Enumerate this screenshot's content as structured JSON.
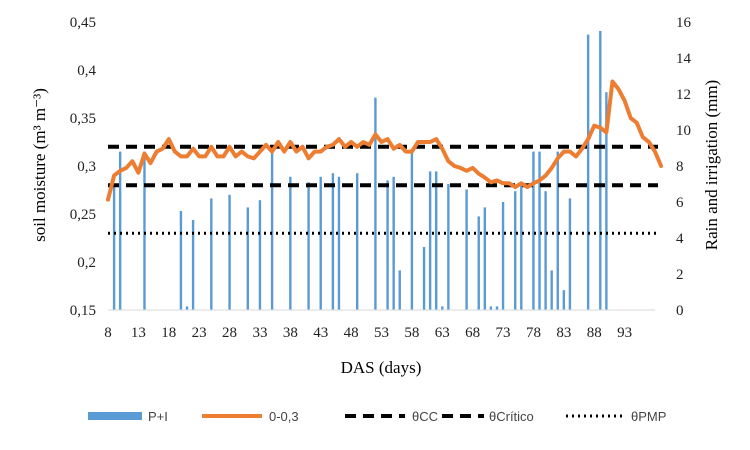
{
  "chart_data": {
    "type": "bar+line",
    "xlabel": "DAS  (days)",
    "ylabel_left": "soil moisture (m³ m⁻³)",
    "ylabel_right": "Rain and irrigation (mm)",
    "xlim": [
      8,
      98
    ],
    "x_ticks": [
      8,
      13,
      18,
      23,
      28,
      33,
      38,
      43,
      48,
      53,
      58,
      63,
      68,
      73,
      78,
      83,
      88,
      93
    ],
    "ylim_left": [
      0.15,
      0.45
    ],
    "yticks_left": [
      "0,15",
      "0,2",
      "0,25",
      "0,3",
      "0,35",
      "0,4",
      "0,45"
    ],
    "ylim_right": [
      0,
      16
    ],
    "yticks_right": [
      "0",
      "2",
      "4",
      "6",
      "8",
      "10",
      "12",
      "14",
      "16"
    ],
    "grid": false,
    "legend_position": "bottom",
    "series": [
      {
        "name": "P+I",
        "kind": "bar",
        "axis": "right",
        "color": "#5b9bd5",
        "points": [
          [
            9,
            7.0
          ],
          [
            10,
            8.8
          ],
          [
            14,
            8.8
          ],
          [
            20,
            5.5
          ],
          [
            21,
            0.2
          ],
          [
            22,
            5.0
          ],
          [
            25,
            6.2
          ],
          [
            28,
            6.4
          ],
          [
            31,
            5.7
          ],
          [
            33,
            6.1
          ],
          [
            35,
            8.7
          ],
          [
            38,
            7.4
          ],
          [
            41,
            7.1
          ],
          [
            43,
            7.4
          ],
          [
            45,
            7.6
          ],
          [
            46,
            7.4
          ],
          [
            49,
            7.6
          ],
          [
            52,
            11.8
          ],
          [
            54,
            7.2
          ],
          [
            55,
            7.4
          ],
          [
            56,
            2.2
          ],
          [
            58,
            8.8
          ],
          [
            60,
            3.5
          ],
          [
            61,
            7.7
          ],
          [
            62,
            7.7
          ],
          [
            63,
            0.2
          ],
          [
            64,
            7.0
          ],
          [
            67,
            6.7
          ],
          [
            69,
            5.2
          ],
          [
            70,
            5.7
          ],
          [
            71,
            0.2
          ],
          [
            72,
            0.2
          ],
          [
            73,
            6.0
          ],
          [
            75,
            6.6
          ],
          [
            76,
            7.1
          ],
          [
            78,
            8.8
          ],
          [
            79,
            8.8
          ],
          [
            80,
            6.6
          ],
          [
            81,
            2.2
          ],
          [
            82,
            8.8
          ],
          [
            83,
            1.1
          ],
          [
            84,
            6.2
          ],
          [
            87,
            15.3
          ],
          [
            89,
            15.5
          ],
          [
            90,
            12.1
          ]
        ]
      },
      {
        "name": "0-0,3",
        "kind": "line",
        "axis": "left",
        "color": "#ed7d31",
        "points": [
          [
            8,
            0.265
          ],
          [
            9,
            0.29
          ],
          [
            10,
            0.295
          ],
          [
            11,
            0.298
          ],
          [
            12,
            0.305
          ],
          [
            13,
            0.293
          ],
          [
            14,
            0.313
          ],
          [
            15,
            0.303
          ],
          [
            16,
            0.315
          ],
          [
            17,
            0.318
          ],
          [
            18,
            0.328
          ],
          [
            19,
            0.315
          ],
          [
            20,
            0.31
          ],
          [
            21,
            0.31
          ],
          [
            22,
            0.318
          ],
          [
            23,
            0.31
          ],
          [
            24,
            0.31
          ],
          [
            25,
            0.32
          ],
          [
            26,
            0.31
          ],
          [
            27,
            0.31
          ],
          [
            28,
            0.32
          ],
          [
            29,
            0.31
          ],
          [
            30,
            0.315
          ],
          [
            31,
            0.31
          ],
          [
            32,
            0.308
          ],
          [
            33,
            0.315
          ],
          [
            34,
            0.322
          ],
          [
            35,
            0.315
          ],
          [
            36,
            0.325
          ],
          [
            37,
            0.315
          ],
          [
            38,
            0.325
          ],
          [
            39,
            0.315
          ],
          [
            40,
            0.32
          ],
          [
            41,
            0.308
          ],
          [
            42,
            0.315
          ],
          [
            43,
            0.315
          ],
          [
            44,
            0.32
          ],
          [
            45,
            0.322
          ],
          [
            46,
            0.328
          ],
          [
            47,
            0.32
          ],
          [
            48,
            0.325
          ],
          [
            49,
            0.32
          ],
          [
            50,
            0.325
          ],
          [
            51,
            0.322
          ],
          [
            52,
            0.333
          ],
          [
            53,
            0.325
          ],
          [
            54,
            0.328
          ],
          [
            55,
            0.318
          ],
          [
            56,
            0.322
          ],
          [
            57,
            0.315
          ],
          [
            58,
            0.315
          ],
          [
            59,
            0.325
          ],
          [
            60,
            0.325
          ],
          [
            61,
            0.325
          ],
          [
            62,
            0.328
          ],
          [
            63,
            0.318
          ],
          [
            64,
            0.305
          ],
          [
            65,
            0.3
          ],
          [
            66,
            0.298
          ],
          [
            67,
            0.295
          ],
          [
            68,
            0.298
          ],
          [
            69,
            0.292
          ],
          [
            70,
            0.288
          ],
          [
            71,
            0.283
          ],
          [
            72,
            0.285
          ],
          [
            73,
            0.282
          ],
          [
            74,
            0.282
          ],
          [
            75,
            0.278
          ],
          [
            76,
            0.282
          ],
          [
            77,
            0.278
          ],
          [
            78,
            0.282
          ],
          [
            79,
            0.285
          ],
          [
            80,
            0.29
          ],
          [
            81,
            0.298
          ],
          [
            82,
            0.308
          ],
          [
            83,
            0.315
          ],
          [
            84,
            0.315
          ],
          [
            85,
            0.31
          ],
          [
            86,
            0.318
          ],
          [
            87,
            0.328
          ],
          [
            88,
            0.342
          ],
          [
            89,
            0.34
          ],
          [
            90,
            0.335
          ],
          [
            91,
            0.388
          ],
          [
            92,
            0.38
          ],
          [
            93,
            0.368
          ],
          [
            94,
            0.35
          ],
          [
            95,
            0.345
          ],
          [
            96,
            0.33
          ],
          [
            97,
            0.325
          ],
          [
            98,
            0.315
          ],
          [
            99,
            0.3
          ]
        ]
      },
      {
        "name": "θCC",
        "kind": "hline",
        "axis": "left",
        "style": "dashed",
        "color": "#000000",
        "value": 0.32
      },
      {
        "name": "θCrítico",
        "kind": "hline",
        "axis": "left",
        "style": "dashed",
        "color": "#000000",
        "value": 0.28
      },
      {
        "name": "θPMP",
        "kind": "hline",
        "axis": "left",
        "style": "dotted",
        "color": "#000000",
        "value": 0.23
      }
    ]
  }
}
